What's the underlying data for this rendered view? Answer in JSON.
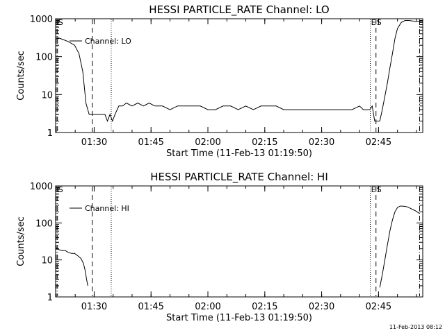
{
  "footer_timestamp": "11-Feb-2013 08:12",
  "chart_data": [
    {
      "type": "line",
      "title": "HESSI PARTICLE_RATE Channel: LO",
      "xlabel": "Start Time (11-Feb-13 01:19:50)",
      "ylabel": "Counts/sec",
      "y_scale": "log",
      "ylim": [
        1,
        1000
      ],
      "xlim": [
        "01:19:50",
        "02:56:40"
      ],
      "x_tick_labels": [
        "01:30",
        "01:45",
        "02:00",
        "02:15",
        "02:30",
        "02:45"
      ],
      "y_tick_labels": [
        "1",
        "10",
        "100",
        "1000"
      ],
      "series": [
        {
          "name": "Channel: LO",
          "x": [
            "01:19:50",
            "01:21:30",
            "01:23:10",
            "01:24:50",
            "01:26:00",
            "01:27:00",
            "01:27:50",
            "01:28:40",
            "01:29:30",
            "01:30:10",
            "01:30:50",
            "01:31:30",
            "01:32:10",
            "01:32:50",
            "01:33:30",
            "01:34:10",
            "01:34:50",
            "01:35:30",
            "01:36:30",
            "01:37:30",
            "01:38:30",
            "01:40:00",
            "01:41:30",
            "01:43:00",
            "01:44:30",
            "01:46:00",
            "01:48:00",
            "01:50:00",
            "01:52:00",
            "01:54:00",
            "01:56:00",
            "01:58:00",
            "02:00:00",
            "02:02:00",
            "02:04:00",
            "02:06:00",
            "02:08:00",
            "02:10:00",
            "02:12:00",
            "02:14:00",
            "02:16:00",
            "02:18:00",
            "02:20:00",
            "02:22:00",
            "02:24:00",
            "02:26:00",
            "02:28:00",
            "02:30:00",
            "02:32:00",
            "02:34:00",
            "02:36:00",
            "02:38:00",
            "02:40:00",
            "02:41:00",
            "02:42:00",
            "02:42:40",
            "02:43:20",
            "02:44:00",
            "02:44:40",
            "02:45:20",
            "02:46:00",
            "02:46:40",
            "02:47:20",
            "02:48:00",
            "02:48:40",
            "02:49:20",
            "02:50:00",
            "02:51:00",
            "02:52:00",
            "02:53:00",
            "02:54:00",
            "02:55:00",
            "02:56:40"
          ],
          "y": [
            330,
            290,
            250,
            200,
            120,
            40,
            6,
            3,
            3,
            3,
            3,
            3,
            3,
            3,
            2,
            3,
            2,
            3,
            5,
            5,
            6,
            5,
            6,
            5,
            6,
            5,
            5,
            4,
            5,
            5,
            5,
            5,
            4,
            4,
            5,
            5,
            4,
            5,
            4,
            5,
            5,
            5,
            4,
            4,
            4,
            4,
            4,
            4,
            4,
            4,
            4,
            4,
            5,
            4,
            4,
            4,
            5,
            2,
            2,
            2,
            4,
            9,
            20,
            50,
            120,
            300,
            550,
            800,
            900,
            900,
            870,
            850,
            850
          ]
        }
      ],
      "markers": [
        {
          "label": "E",
          "time": "01:20:00",
          "style": "dash-dot"
        },
        {
          "label": "S",
          "time": "01:20:20",
          "style": "dash-dot"
        },
        {
          "label": "",
          "time": "01:29:30",
          "style": "dashed"
        },
        {
          "label": "",
          "time": "01:34:30",
          "style": "dotted"
        },
        {
          "label": "E",
          "time": "02:42:50",
          "style": "dotted"
        },
        {
          "label": "S",
          "time": "02:44:20",
          "style": "dashed"
        },
        {
          "label": "",
          "time": "02:55:50",
          "style": "dash-dot"
        }
      ]
    },
    {
      "type": "line",
      "title": "HESSI PARTICLE_RATE Channel: HI",
      "xlabel": "Start Time (11-Feb-13 01:19:50)",
      "ylabel": "Counts/sec",
      "y_scale": "log",
      "ylim": [
        1,
        1000
      ],
      "xlim": [
        "01:19:50",
        "02:56:40"
      ],
      "x_tick_labels": [
        "01:30",
        "01:45",
        "02:00",
        "02:15",
        "02:30",
        "02:45"
      ],
      "y_tick_labels": [
        "1",
        "10",
        "100",
        "1000"
      ],
      "series": [
        {
          "name": "Channel: HI",
          "x": [
            "01:19:50",
            "01:20:40",
            "01:21:30",
            "01:22:20",
            "01:23:10",
            "01:24:00",
            "01:24:50",
            "01:25:40",
            "01:26:30",
            "01:27:10",
            "01:27:40",
            "01:28:00",
            "01:28:20",
            "01:28:40",
            "02:45:20",
            "02:46:00",
            "02:46:40",
            "02:47:20",
            "02:48:00",
            "02:48:40",
            "02:49:20",
            "02:50:00",
            "02:50:40",
            "02:51:20",
            "02:52:00",
            "02:52:40",
            "02:53:20",
            "02:54:00",
            "02:54:40",
            "02:55:20",
            "02:55:50"
          ],
          "y": [
            22,
            19,
            18,
            18,
            16,
            15,
            15,
            13,
            11,
            8,
            5,
            3,
            2,
            null,
            1.8,
            4,
            10,
            25,
            60,
            120,
            200,
            260,
            285,
            285,
            280,
            270,
            250,
            230,
            215,
            195,
            180
          ]
        }
      ],
      "markers": [
        {
          "label": "E",
          "time": "01:20:00",
          "style": "dash-dot"
        },
        {
          "label": "S",
          "time": "01:20:20",
          "style": "dash-dot"
        },
        {
          "label": "",
          "time": "01:29:30",
          "style": "dashed"
        },
        {
          "label": "",
          "time": "01:34:30",
          "style": "dotted"
        },
        {
          "label": "E",
          "time": "02:42:50",
          "style": "dotted"
        },
        {
          "label": "S",
          "time": "02:44:20",
          "style": "dashed"
        },
        {
          "label": "",
          "time": "02:55:50",
          "style": "dash-dot"
        }
      ]
    }
  ]
}
